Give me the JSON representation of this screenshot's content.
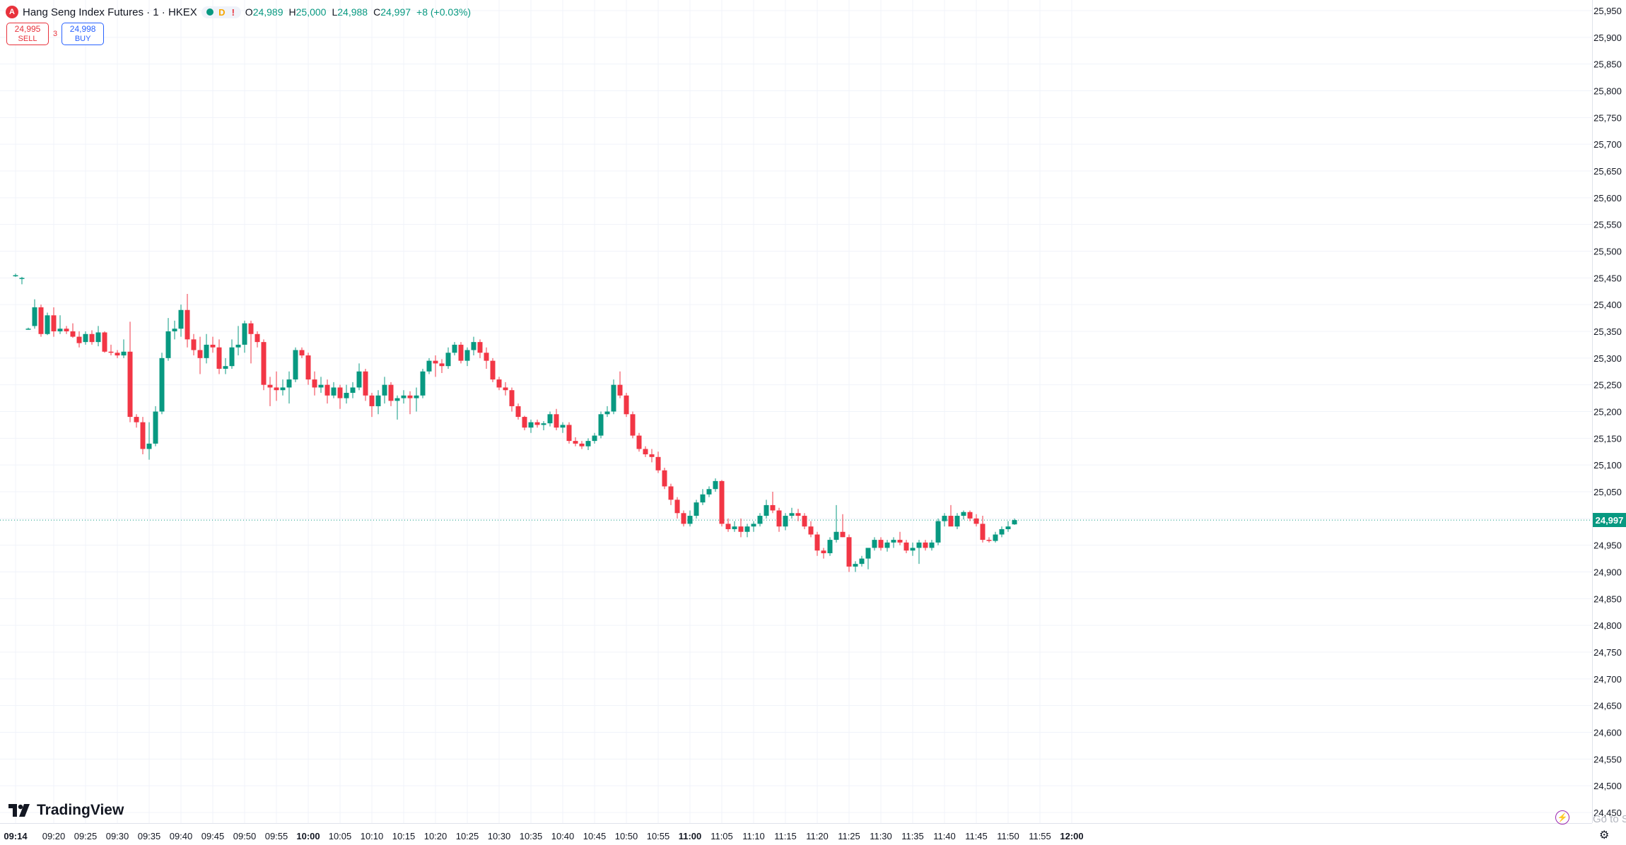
{
  "header": {
    "symbol_badge": "A",
    "title": "Hang Seng Index Futures · 1 · HKEX",
    "status_d": "D",
    "status_alert": "!",
    "ohlc": {
      "o_label": "O",
      "o_value": "24,989",
      "h_label": "H",
      "h_value": "25,000",
      "l_label": "L",
      "l_value": "24,988",
      "c_label": "C",
      "c_value": "24,997",
      "change": "+8 (+0.03%)"
    }
  },
  "trade": {
    "sell_price": "24,995",
    "sell_label": "SELL",
    "spread": "3",
    "buy_price": "24,998",
    "buy_label": "BUY"
  },
  "brand": {
    "name": "TradingView"
  },
  "footer": {
    "goto_text": "Go to S"
  },
  "colors": {
    "up": "#089981",
    "down": "#f23645",
    "grid": "#f0f3fa",
    "last_price": "#089981"
  },
  "chart_data": {
    "type": "candlestick",
    "y_range": [
      24450,
      25950
    ],
    "y_ticks": [
      24450,
      24500,
      24550,
      24600,
      24650,
      24700,
      24750,
      24800,
      24850,
      24900,
      24950,
      25000,
      25050,
      25100,
      25150,
      25200,
      25250,
      25300,
      25350,
      25400,
      25450,
      25500,
      25550,
      25600,
      25650,
      25700,
      25750,
      25800,
      25850,
      25900,
      25950
    ],
    "y_tick_labels": [
      "24,450",
      "24,500",
      "24,550",
      "24,600",
      "24,650",
      "24,700",
      "24,750",
      "24,800",
      "24,850",
      "24,900",
      "24,950",
      "25,000",
      "25,050",
      "25,100",
      "25,150",
      "25,200",
      "25,250",
      "25,300",
      "25,350",
      "25,400",
      "25,450",
      "25,500",
      "25,550",
      "25,600",
      "25,650",
      "25,700",
      "25,750",
      "25,800",
      "25,850",
      "25,900",
      "25,950"
    ],
    "x_ticks": [
      "09:14",
      "09:20",
      "09:25",
      "09:30",
      "09:35",
      "09:40",
      "09:45",
      "09:50",
      "09:55",
      "10:00",
      "10:05",
      "10:10",
      "10:15",
      "10:20",
      "10:25",
      "10:30",
      "10:35",
      "10:40",
      "10:45",
      "10:50",
      "10:55",
      "11:00",
      "11:05",
      "11:10",
      "11:15",
      "11:20",
      "11:25",
      "11:30",
      "11:35",
      "11:40",
      "11:45",
      "11:50",
      "11:55",
      "12:00"
    ],
    "x_ticks_bold": [
      "09:14",
      "10:00",
      "11:00",
      "12:00"
    ],
    "first_time": "09:14",
    "last_price": "24,997",
    "candles": [
      [
        25455,
        25458,
        25452,
        25455
      ],
      [
        25450,
        25452,
        25438,
        25450
      ],
      [
        25355,
        25357,
        25353,
        25355
      ],
      [
        25360,
        25410,
        25355,
        25395
      ],
      [
        25395,
        25400,
        25340,
        25345
      ],
      [
        25345,
        25385,
        25343,
        25380
      ],
      [
        25380,
        25395,
        25340,
        25350
      ],
      [
        25350,
        25380,
        25345,
        25355
      ],
      [
        25355,
        25360,
        25345,
        25350
      ],
      [
        25350,
        25365,
        25338,
        25340
      ],
      [
        25340,
        25350,
        25320,
        25328
      ],
      [
        25330,
        25350,
        25325,
        25345
      ],
      [
        25345,
        25352,
        25325,
        25330
      ],
      [
        25330,
        25360,
        25322,
        25348
      ],
      [
        25348,
        25350,
        25310,
        25312
      ],
      [
        25312,
        25325,
        25305,
        25310
      ],
      [
        25310,
        25315,
        25300,
        25305
      ],
      [
        25305,
        25335,
        25300,
        25312
      ],
      [
        25312,
        25368,
        25180,
        25190
      ],
      [
        25190,
        25195,
        25170,
        25180
      ],
      [
        25180,
        25190,
        25120,
        25130
      ],
      [
        25130,
        25180,
        25110,
        25140
      ],
      [
        25140,
        25210,
        25135,
        25200
      ],
      [
        25200,
        25310,
        25195,
        25300
      ],
      [
        25300,
        25375,
        25295,
        25350
      ],
      [
        25350,
        25370,
        25335,
        25355
      ],
      [
        25355,
        25400,
        25340,
        25390
      ],
      [
        25390,
        25420,
        25320,
        25335
      ],
      [
        25335,
        25345,
        25305,
        25315
      ],
      [
        25315,
        25340,
        25270,
        25300
      ],
      [
        25300,
        25345,
        25290,
        25325
      ],
      [
        25325,
        25340,
        25310,
        25320
      ],
      [
        25320,
        25335,
        25270,
        25280
      ],
      [
        25280,
        25300,
        25270,
        25285
      ],
      [
        25285,
        25335,
        25280,
        25320
      ],
      [
        25320,
        25360,
        25305,
        25325
      ],
      [
        25325,
        25370,
        25310,
        25365
      ],
      [
        25365,
        25370,
        25290,
        25345
      ],
      [
        25345,
        25350,
        25320,
        25330
      ],
      [
        25330,
        25335,
        25240,
        25250
      ],
      [
        25250,
        25265,
        25210,
        25245
      ],
      [
        25245,
        25275,
        25220,
        25240
      ],
      [
        25240,
        25260,
        25230,
        25245
      ],
      [
        25245,
        25275,
        25215,
        25260
      ],
      [
        25260,
        25320,
        25255,
        25315
      ],
      [
        25315,
        25320,
        25300,
        25305
      ],
      [
        25305,
        25310,
        25250,
        25260
      ],
      [
        25260,
        25275,
        25230,
        25245
      ],
      [
        25245,
        25265,
        25235,
        25250
      ],
      [
        25250,
        25260,
        25215,
        25230
      ],
      [
        25230,
        25255,
        25225,
        25245
      ],
      [
        25245,
        25250,
        25205,
        25225
      ],
      [
        25225,
        25250,
        25215,
        25235
      ],
      [
        25235,
        25255,
        25225,
        25245
      ],
      [
        25245,
        25290,
        25240,
        25275
      ],
      [
        25275,
        25280,
        25220,
        25230
      ],
      [
        25230,
        25235,
        25190,
        25210
      ],
      [
        25210,
        25240,
        25195,
        25230
      ],
      [
        25230,
        25265,
        25215,
        25250
      ],
      [
        25250,
        25255,
        25210,
        25220
      ],
      [
        25220,
        25230,
        25185,
        25225
      ],
      [
        25225,
        25240,
        25215,
        25230
      ],
      [
        25230,
        25238,
        25195,
        25225
      ],
      [
        25225,
        25245,
        25200,
        25230
      ],
      [
        25230,
        25280,
        25225,
        25275
      ],
      [
        25275,
        25300,
        25270,
        25295
      ],
      [
        25295,
        25305,
        25265,
        25290
      ],
      [
        25290,
        25298,
        25272,
        25285
      ],
      [
        25285,
        25320,
        25280,
        25310
      ],
      [
        25310,
        25330,
        25305,
        25325
      ],
      [
        25325,
        25330,
        25290,
        25295
      ],
      [
        25295,
        25320,
        25285,
        25315
      ],
      [
        25315,
        25340,
        25305,
        25330
      ],
      [
        25330,
        25335,
        25300,
        25310
      ],
      [
        25310,
        25320,
        25280,
        25295
      ],
      [
        25295,
        25300,
        25255,
        25260
      ],
      [
        25260,
        25265,
        25240,
        25245
      ],
      [
        25245,
        25255,
        25230,
        25240
      ],
      [
        25240,
        25245,
        25200,
        25210
      ],
      [
        25210,
        25215,
        25185,
        25190
      ],
      [
        25190,
        25192,
        25165,
        25170
      ],
      [
        25170,
        25185,
        25160,
        25180
      ],
      [
        25180,
        25185,
        25170,
        25175
      ],
      [
        25175,
        25182,
        25165,
        25178
      ],
      [
        25178,
        25200,
        25172,
        25195
      ],
      [
        25195,
        25205,
        25165,
        25170
      ],
      [
        25170,
        25180,
        25160,
        25175
      ],
      [
        25175,
        25180,
        25140,
        25145
      ],
      [
        25145,
        25152,
        25135,
        25140
      ],
      [
        25140,
        25145,
        25130,
        25135
      ],
      [
        25135,
        25150,
        25128,
        25145
      ],
      [
        25145,
        25160,
        25140,
        25155
      ],
      [
        25155,
        25200,
        25150,
        25195
      ],
      [
        25195,
        25210,
        25190,
        25200
      ],
      [
        25200,
        25260,
        25195,
        25250
      ],
      [
        25250,
        25275,
        25225,
        25230
      ],
      [
        25230,
        25235,
        25190,
        25195
      ],
      [
        25195,
        25200,
        25150,
        25155
      ],
      [
        25155,
        25160,
        25125,
        25130
      ],
      [
        25130,
        25135,
        25115,
        25120
      ],
      [
        25120,
        25130,
        25105,
        25115
      ],
      [
        25115,
        25125,
        25085,
        25090
      ],
      [
        25090,
        25095,
        25055,
        25060
      ],
      [
        25060,
        25065,
        25025,
        25035
      ],
      [
        25035,
        25040,
        25000,
        25010
      ],
      [
        25010,
        25015,
        24985,
        24990
      ],
      [
        24990,
        25015,
        24985,
        25005
      ],
      [
        25005,
        25035,
        25000,
        25030
      ],
      [
        25030,
        25055,
        25025,
        25045
      ],
      [
        25045,
        25060,
        25040,
        25055
      ],
      [
        25055,
        25075,
        25050,
        25070
      ],
      [
        25070,
        25072,
        24985,
        24990
      ],
      [
        24990,
        25000,
        24975,
        24980
      ],
      [
        24980,
        24995,
        24975,
        24985
      ],
      [
        24985,
        25000,
        24965,
        24975
      ],
      [
        24975,
        24990,
        24965,
        24985
      ],
      [
        24985,
        24995,
        24975,
        24990
      ],
      [
        24990,
        25010,
        24985,
        25005
      ],
      [
        25005,
        25035,
        25000,
        25025
      ],
      [
        25025,
        25050,
        25010,
        25015
      ],
      [
        25015,
        25020,
        24975,
        24985
      ],
      [
        24985,
        25010,
        24978,
        25005
      ],
      [
        25005,
        25020,
        25000,
        25010
      ],
      [
        25010,
        25018,
        24995,
        25005
      ],
      [
        25005,
        25010,
        24980,
        24985
      ],
      [
        24985,
        24995,
        24965,
        24970
      ],
      [
        24970,
        24975,
        24930,
        24940
      ],
      [
        24940,
        24945,
        24925,
        24935
      ],
      [
        24935,
        24965,
        24930,
        24960
      ],
      [
        24960,
        25025,
        24955,
        24975
      ],
      [
        24975,
        25008,
        24965,
        24965
      ],
      [
        24965,
        24970,
        24900,
        24910
      ],
      [
        24910,
        24920,
        24900,
        24915
      ],
      [
        24915,
        24930,
        24910,
        24925
      ],
      [
        24925,
        24945,
        24905,
        24945
      ],
      [
        24945,
        24965,
        24940,
        24960
      ],
      [
        24960,
        24965,
        24940,
        24945
      ],
      [
        24945,
        24960,
        24938,
        24955
      ],
      [
        24955,
        24965,
        24945,
        24960
      ],
      [
        24960,
        24975,
        24950,
        24955
      ],
      [
        24955,
        24960,
        24935,
        24940
      ],
      [
        24940,
        24955,
        24930,
        24945
      ],
      [
        24945,
        24960,
        24915,
        24955
      ],
      [
        24955,
        24960,
        24940,
        24945
      ],
      [
        24945,
        24960,
        24940,
        24955
      ],
      [
        24955,
        25000,
        24950,
        24995
      ],
      [
        24995,
        25010,
        24985,
        25005
      ],
      [
        25005,
        25025,
        24995,
        24985
      ],
      [
        24985,
        25010,
        24980,
        25005
      ],
      [
        25005,
        25015,
        24998,
        25012
      ],
      [
        25012,
        25015,
        24995,
        25000
      ],
      [
        25000,
        25008,
        24985,
        24990
      ],
      [
        24990,
        25005,
        24955,
        24960
      ],
      [
        24960,
        24965,
        24955,
        24958
      ],
      [
        24958,
        24975,
        24955,
        24970
      ],
      [
        24970,
        24985,
        24965,
        24980
      ],
      [
        24980,
        24995,
        24975,
        24985
      ],
      [
        24989,
        25000,
        24988,
        24997
      ]
    ]
  }
}
